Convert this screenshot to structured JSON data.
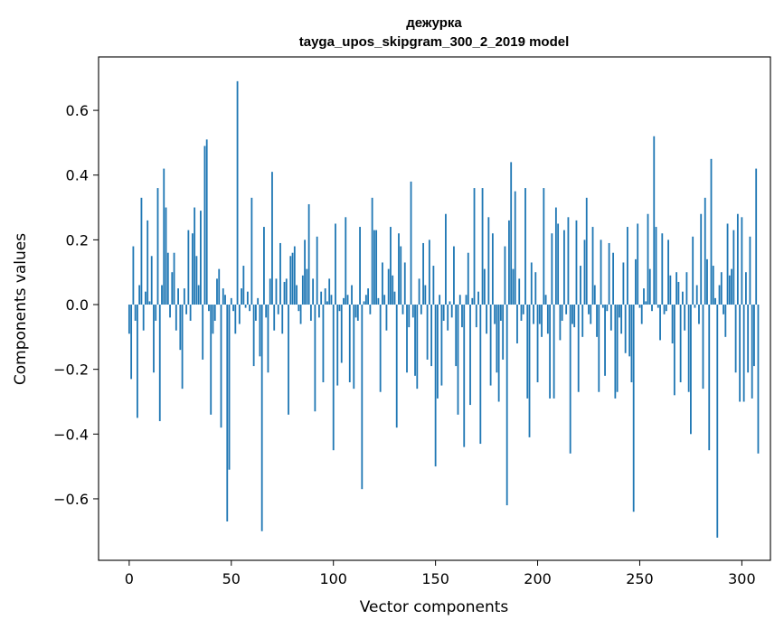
{
  "chart_data": {
    "type": "bar",
    "title": "дежурка",
    "subtitle": "tayga_upos_skipgram_300_2_2019 model",
    "xlabel": "Vector components",
    "ylabel": "Components values",
    "xlim": [
      -15,
      314
    ],
    "ylim": [
      -0.79,
      0.765
    ],
    "x_ticks": [
      0,
      50,
      100,
      150,
      200,
      250,
      300
    ],
    "x_tick_labels": [
      "0",
      "50",
      "100",
      "150",
      "200",
      "250",
      "300"
    ],
    "y_ticks": [
      -0.6,
      -0.4,
      -0.2,
      0.0,
      0.2,
      0.4,
      0.6
    ],
    "y_tick_labels": [
      "−0.6",
      "−0.4",
      "−0.2",
      "0.0",
      "0.2",
      "0.4",
      "0.6"
    ],
    "grid": false,
    "bar_color": "#1f77b4",
    "x_start": 0,
    "values": [
      -0.09,
      -0.23,
      0.18,
      -0.05,
      -0.35,
      0.06,
      0.33,
      -0.08,
      0.04,
      0.26,
      0.01,
      0.15,
      -0.21,
      -0.05,
      0.36,
      -0.36,
      0.06,
      0.42,
      0.3,
      0.16,
      -0.04,
      0.1,
      0.16,
      -0.08,
      0.05,
      -0.14,
      -0.26,
      0.05,
      -0.03,
      0.23,
      -0.05,
      0.22,
      0.3,
      0.15,
      0.06,
      0.29,
      -0.17,
      0.49,
      0.51,
      -0.02,
      -0.34,
      -0.09,
      -0.05,
      0.08,
      0.11,
      -0.38,
      0.05,
      0.03,
      -0.67,
      -0.51,
      0.02,
      -0.02,
      -0.09,
      0.69,
      -0.06,
      0.05,
      0.12,
      -0.01,
      0.04,
      -0.02,
      0.33,
      -0.19,
      -0.05,
      0.02,
      -0.16,
      -0.7,
      0.24,
      -0.04,
      -0.21,
      0.08,
      0.41,
      -0.08,
      0.08,
      -0.03,
      0.19,
      -0.09,
      0.07,
      0.08,
      -0.34,
      0.15,
      0.16,
      0.18,
      0.06,
      -0.02,
      -0.06,
      0.09,
      0.2,
      0.11,
      0.31,
      -0.05,
      0.08,
      -0.33,
      0.21,
      -0.04,
      0.04,
      -0.24,
      0.05,
      0.01,
      0.08,
      0.03,
      -0.45,
      0.25,
      -0.25,
      -0.02,
      -0.18,
      0.02,
      0.27,
      0.03,
      -0.24,
      0.06,
      -0.26,
      -0.04,
      -0.05,
      0.24,
      -0.57,
      0.01,
      0.03,
      0.05,
      -0.03,
      0.33,
      0.23,
      0.23,
      0.02,
      -0.27,
      0.13,
      0.03,
      -0.08,
      0.11,
      0.24,
      0.09,
      0.04,
      -0.38,
      0.22,
      0.18,
      -0.03,
      0.13,
      -0.21,
      -0.07,
      0.38,
      -0.04,
      -0.22,
      -0.26,
      0.08,
      -0.03,
      0.19,
      0.06,
      -0.17,
      0.2,
      -0.19,
      0.12,
      -0.5,
      -0.29,
      0.03,
      -0.25,
      -0.05,
      0.28,
      -0.08,
      0.01,
      -0.04,
      0.18,
      -0.19,
      -0.34,
      0.03,
      -0.07,
      -0.44,
      0.03,
      0.16,
      -0.31,
      0.02,
      0.36,
      -0.07,
      0.04,
      -0.43,
      0.36,
      0.11,
      -0.09,
      0.27,
      -0.25,
      0.22,
      -0.06,
      -0.21,
      -0.3,
      -0.05,
      -0.17,
      0.18,
      -0.62,
      0.26,
      0.44,
      0.11,
      0.35,
      -0.12,
      0.08,
      -0.05,
      -0.03,
      0.36,
      -0.29,
      -0.41,
      0.13,
      -0.06,
      0.1,
      -0.24,
      -0.06,
      -0.1,
      0.36,
      0.03,
      -0.09,
      -0.29,
      0.22,
      -0.29,
      0.3,
      0.25,
      -0.11,
      -0.05,
      0.23,
      -0.03,
      0.27,
      -0.46,
      -0.06,
      -0.07,
      0.26,
      -0.27,
      0.12,
      -0.1,
      0.2,
      0.33,
      -0.03,
      -0.06,
      0.24,
      0.06,
      -0.1,
      -0.27,
      0.2,
      -0.01,
      -0.22,
      -0.02,
      0.19,
      -0.08,
      0.16,
      -0.29,
      -0.27,
      -0.04,
      -0.09,
      0.13,
      -0.15,
      0.24,
      -0.16,
      -0.24,
      -0.64,
      0.14,
      0.25,
      -0.01,
      -0.06,
      0.05,
      0.01,
      0.28,
      0.11,
      -0.02,
      0.52,
      0.24,
      -0.01,
      -0.11,
      0.22,
      -0.03,
      -0.02,
      0.2,
      0.09,
      -0.12,
      -0.28,
      0.1,
      0.07,
      -0.24,
      0.04,
      -0.08,
      0.1,
      -0.27,
      -0.4,
      0.21,
      -0.01,
      0.06,
      -0.06,
      0.28,
      -0.26,
      0.33,
      0.14,
      -0.45,
      0.45,
      0.12,
      0.02,
      -0.72,
      0.06,
      0.1,
      -0.03,
      -0.1,
      0.25,
      0.09,
      0.11,
      0.23,
      -0.21,
      0.28,
      -0.3,
      0.27,
      -0.3,
      0.1,
      -0.21,
      0.21,
      -0.29,
      -0.19,
      0.42,
      -0.46
    ]
  }
}
